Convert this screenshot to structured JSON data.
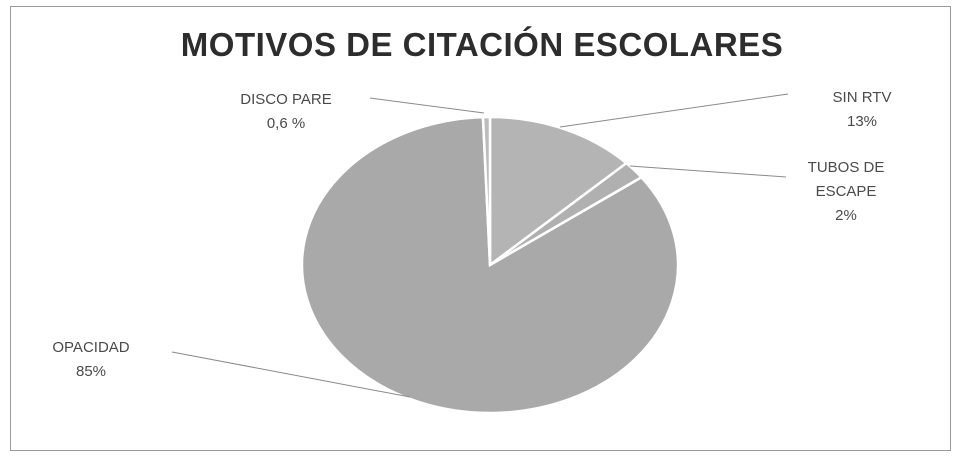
{
  "chart_data": {
    "type": "pie",
    "title": "MOTIVOS DE CITACIÓN ESCOLARES",
    "slices": [
      {
        "label_lines": [
          "SIN RTV",
          "13%"
        ],
        "value": 13,
        "color": "#b4b4b4"
      },
      {
        "label_lines": [
          "TUBOS DE",
          "ESCAPE",
          "2%"
        ],
        "value": 2,
        "color": "#b0b0b0"
      },
      {
        "label_lines": [
          "OPACIDAD",
          "85%"
        ],
        "value": 85,
        "color": "#a9a9a9"
      },
      {
        "label_lines": [
          "DISCO PARE",
          "0,6 %"
        ],
        "value": 0.6,
        "color": "#bcbcbc"
      }
    ]
  }
}
